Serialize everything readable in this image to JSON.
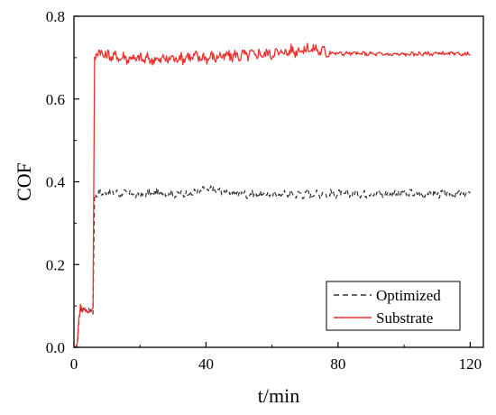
{
  "chart_data": {
    "type": "line",
    "title": "",
    "xlabel": "t/min",
    "ylabel": "COF",
    "xlim": [
      0,
      124
    ],
    "ylim": [
      0,
      0.8
    ],
    "x_ticks": [
      0,
      40,
      80,
      120
    ],
    "y_ticks": [
      0.0,
      0.2,
      0.4,
      0.6,
      0.8
    ],
    "x_tick_labels": [
      "0",
      "40",
      "80",
      "120"
    ],
    "y_tick_labels": [
      "0.0",
      "0.2",
      "0.4",
      "0.6",
      "0.8"
    ],
    "grid": false,
    "legend_position": "bottom-right",
    "series": [
      {
        "name": "Optimized",
        "color": "#333333",
        "line_style": "dashed",
        "x": [
          0.0,
          0.5,
          1.0,
          1.5,
          2.0,
          2.5,
          3.0,
          4.0,
          5.0,
          5.8,
          6.2,
          7.0,
          10.0,
          15.0,
          20.0,
          25.0,
          30.0,
          35.0,
          40.0,
          42.0,
          45.0,
          50.0,
          55.0,
          60.0,
          65.0,
          70.0,
          75.0,
          80.0,
          85.0,
          90.0,
          95.0,
          100.0,
          105.0,
          110.0,
          115.0,
          120.0
        ],
        "y": [
          0.0,
          0.0,
          0.005,
          0.06,
          0.09,
          0.085,
          0.095,
          0.088,
          0.09,
          0.085,
          0.37,
          0.37,
          0.375,
          0.372,
          0.369,
          0.374,
          0.37,
          0.372,
          0.38,
          0.383,
          0.376,
          0.372,
          0.368,
          0.37,
          0.371,
          0.37,
          0.372,
          0.37,
          0.372,
          0.37,
          0.371,
          0.373,
          0.37,
          0.372,
          0.37,
          0.37
        ]
      },
      {
        "name": "Substrate",
        "color": "#e8322d",
        "line_style": "solid",
        "x": [
          0.0,
          0.5,
          1.0,
          1.5,
          2.0,
          2.5,
          3.0,
          4.0,
          5.0,
          5.8,
          6.2,
          7.0,
          10.0,
          15.0,
          20.0,
          25.0,
          30.0,
          35.0,
          40.0,
          45.0,
          50.0,
          55.0,
          60.0,
          65.0,
          70.0,
          72.0,
          75.0,
          78.0,
          80.0,
          85.0,
          90.0,
          95.0,
          100.0,
          105.0,
          110.0,
          115.0,
          120.0
        ],
        "y": [
          0.0,
          0.0,
          0.01,
          0.07,
          0.1,
          0.09,
          0.095,
          0.085,
          0.09,
          0.09,
          0.7,
          0.715,
          0.705,
          0.7,
          0.697,
          0.695,
          0.698,
          0.702,
          0.7,
          0.703,
          0.705,
          0.708,
          0.71,
          0.715,
          0.72,
          0.722,
          0.715,
          0.712,
          0.71,
          0.71,
          0.709,
          0.708,
          0.708,
          0.709,
          0.71,
          0.709,
          0.708
        ]
      }
    ]
  }
}
